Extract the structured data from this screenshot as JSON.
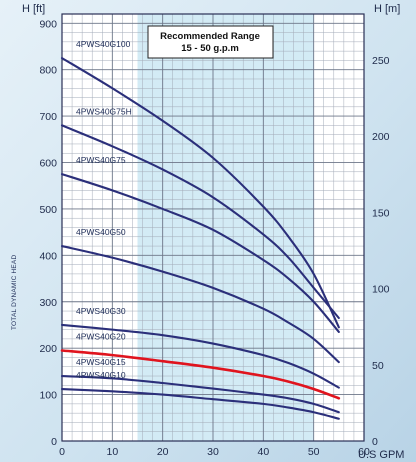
{
  "chart_data": {
    "type": "line",
    "xlabel": "U.S GPM",
    "ylabel_left": "H [ft]",
    "ylabel_right": "H [m]",
    "side_label": "TOTAL DYNAMIC HEAD",
    "xlim": [
      0,
      60
    ],
    "ylim": [
      0,
      920
    ],
    "ylim_m": [
      0,
      280
    ],
    "x_ticks": [
      0,
      10,
      20,
      30,
      40,
      50,
      60
    ],
    "y_ticks_ft": [
      0,
      100,
      200,
      300,
      400,
      500,
      600,
      700,
      800,
      900
    ],
    "y_ticks_m": [
      0,
      50,
      100,
      150,
      200,
      250
    ],
    "recommended_range": {
      "title": "Recommended Range",
      "subtitle": "15 - 50 g.p.m",
      "x_range": [
        15,
        50
      ]
    },
    "grid": true,
    "colors": {
      "curve": "#2b2f7a",
      "highlight": "#e0141e",
      "band": "#d3ebf5",
      "grid": "#8d96a6"
    },
    "series": [
      {
        "name": "4PWS40G100",
        "x": [
          0,
          10,
          20,
          30,
          40,
          45,
          50,
          55
        ],
        "values": [
          825,
          760,
          690,
          610,
          505,
          440,
          360,
          245
        ]
      },
      {
        "name": "4PWS40G75H",
        "x": [
          0,
          10,
          20,
          30,
          40,
          45,
          50,
          55
        ],
        "values": [
          680,
          635,
          585,
          525,
          445,
          395,
          330,
          265
        ]
      },
      {
        "name": "4PWS40G75",
        "x": [
          0,
          10,
          20,
          30,
          40,
          45,
          50,
          55
        ],
        "values": [
          575,
          540,
          500,
          455,
          390,
          350,
          300,
          235
        ]
      },
      {
        "name": "4PWS40G50",
        "x": [
          0,
          10,
          20,
          30,
          40,
          45,
          50,
          55
        ],
        "values": [
          420,
          395,
          365,
          330,
          285,
          255,
          220,
          170
        ]
      },
      {
        "name": "4PWS40G30",
        "x": [
          0,
          10,
          20,
          30,
          40,
          45,
          50,
          55
        ],
        "values": [
          250,
          240,
          228,
          210,
          185,
          168,
          145,
          115
        ]
      },
      {
        "name": "4PWS40G20",
        "x": [
          0,
          10,
          20,
          30,
          40,
          45,
          50,
          55
        ],
        "values": [
          195,
          185,
          172,
          158,
          140,
          128,
          112,
          92
        ]
      },
      {
        "name": "4PWS40G15",
        "x": [
          0,
          10,
          20,
          30,
          40,
          45,
          50,
          55
        ],
        "values": [
          140,
          135,
          125,
          113,
          100,
          92,
          80,
          62
        ]
      },
      {
        "name": "4PWS40G10",
        "x": [
          0,
          10,
          20,
          30,
          40,
          45,
          50,
          55
        ],
        "values": [
          112,
          107,
          100,
          90,
          80,
          72,
          62,
          48
        ]
      }
    ],
    "highlight_series": "4PWS40G20"
  }
}
